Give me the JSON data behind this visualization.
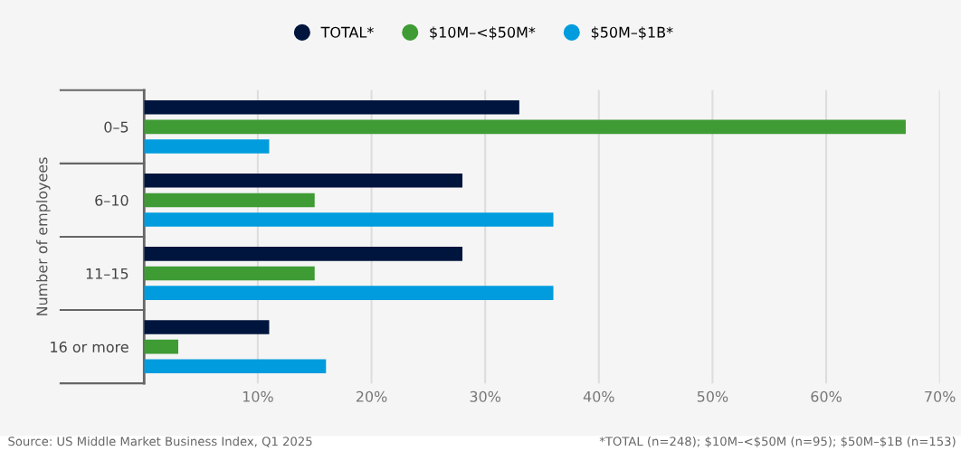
{
  "chart_data": {
    "type": "bar",
    "orientation": "horizontal",
    "ylabel": "Number of employees",
    "categories": [
      "0–5",
      "6–10",
      "11–15",
      "16 or more"
    ],
    "series": [
      {
        "name": "TOTAL*",
        "color": "#00153d",
        "values": [
          33,
          28,
          28,
          11
        ]
      },
      {
        "name": "$10M–<$50M*",
        "color": "#3f9c35",
        "values": [
          67,
          15,
          15,
          3
        ]
      },
      {
        "name": "$50M–$1B*",
        "color": "#009cde",
        "values": [
          11,
          36,
          36,
          16
        ]
      }
    ],
    "xlim": [
      0,
      70
    ],
    "xticks": [
      {
        "value": 10,
        "label": "10%"
      },
      {
        "value": 20,
        "label": "20%"
      },
      {
        "value": 30,
        "label": "30%"
      },
      {
        "value": 40,
        "label": "40%"
      },
      {
        "value": 50,
        "label": "50%"
      },
      {
        "value": 60,
        "label": "60%"
      },
      {
        "value": 70,
        "label": "70%"
      }
    ],
    "grid": "x",
    "legend": "top",
    "annotations": [
      "Source: US Middle Market Business Index, Q1 2025",
      "*TOTAL (n=248); $10M–<$50M (n=95); $50M–$1B (n=153)"
    ]
  }
}
